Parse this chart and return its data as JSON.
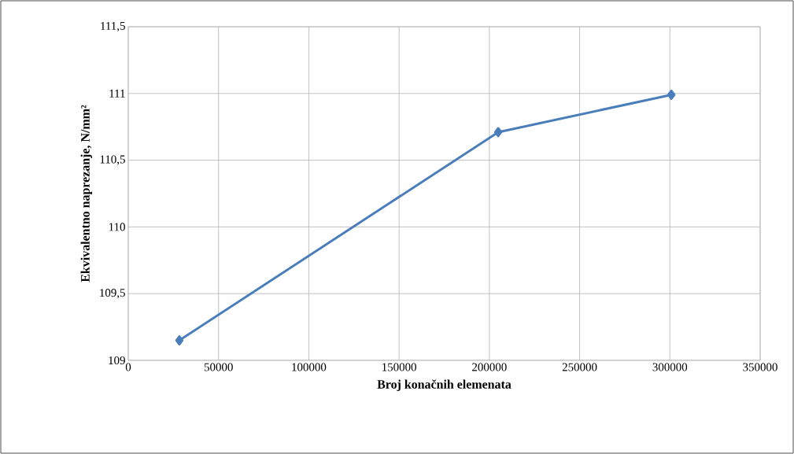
{
  "chart_data": {
    "type": "line",
    "xlabel": "Broj konačnih elemenata",
    "ylabel": "Ekvivalentno naprezanje, N/mm²",
    "x": [
      28300,
      204900,
      300800
    ],
    "series": [
      {
        "color": "#4a7ebb",
        "values": [
          109.15,
          110.71,
          110.99
        ]
      }
    ],
    "xlim": [
      0,
      350000
    ],
    "xticks": [
      0,
      50000,
      100000,
      150000,
      200000,
      250000,
      300000,
      350000
    ],
    "ylim": [
      109,
      111.5
    ],
    "yticks": [
      109,
      {
        "value": 109.5,
        "label": "109,5"
      },
      110,
      {
        "value": 110.5,
        "label": "110,5"
      },
      111,
      {
        "value": 111.5,
        "label": "111,5"
      }
    ],
    "grid": true,
    "marker": "diamond",
    "line_style": "solid"
  }
}
